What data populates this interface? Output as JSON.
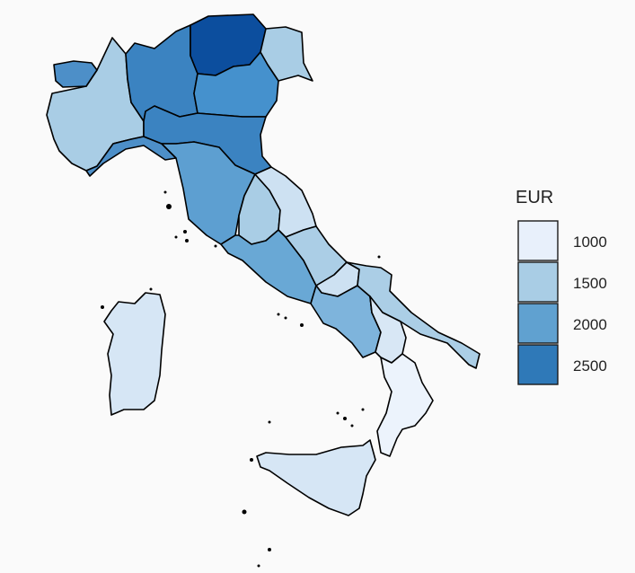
{
  "legend": {
    "title": "EUR",
    "items": [
      {
        "label": "1000",
        "color": "#e8f0fb"
      },
      {
        "label": "1500",
        "color": "#a9cde5"
      },
      {
        "label": "2000",
        "color": "#60a1d0"
      },
      {
        "label": "2500",
        "color": "#2f79b8"
      }
    ]
  },
  "palette": {
    "darkest": "#0a4d9a",
    "lightest": "#e8f0fb",
    "border": "#000000",
    "background": "#fafafa"
  }
}
